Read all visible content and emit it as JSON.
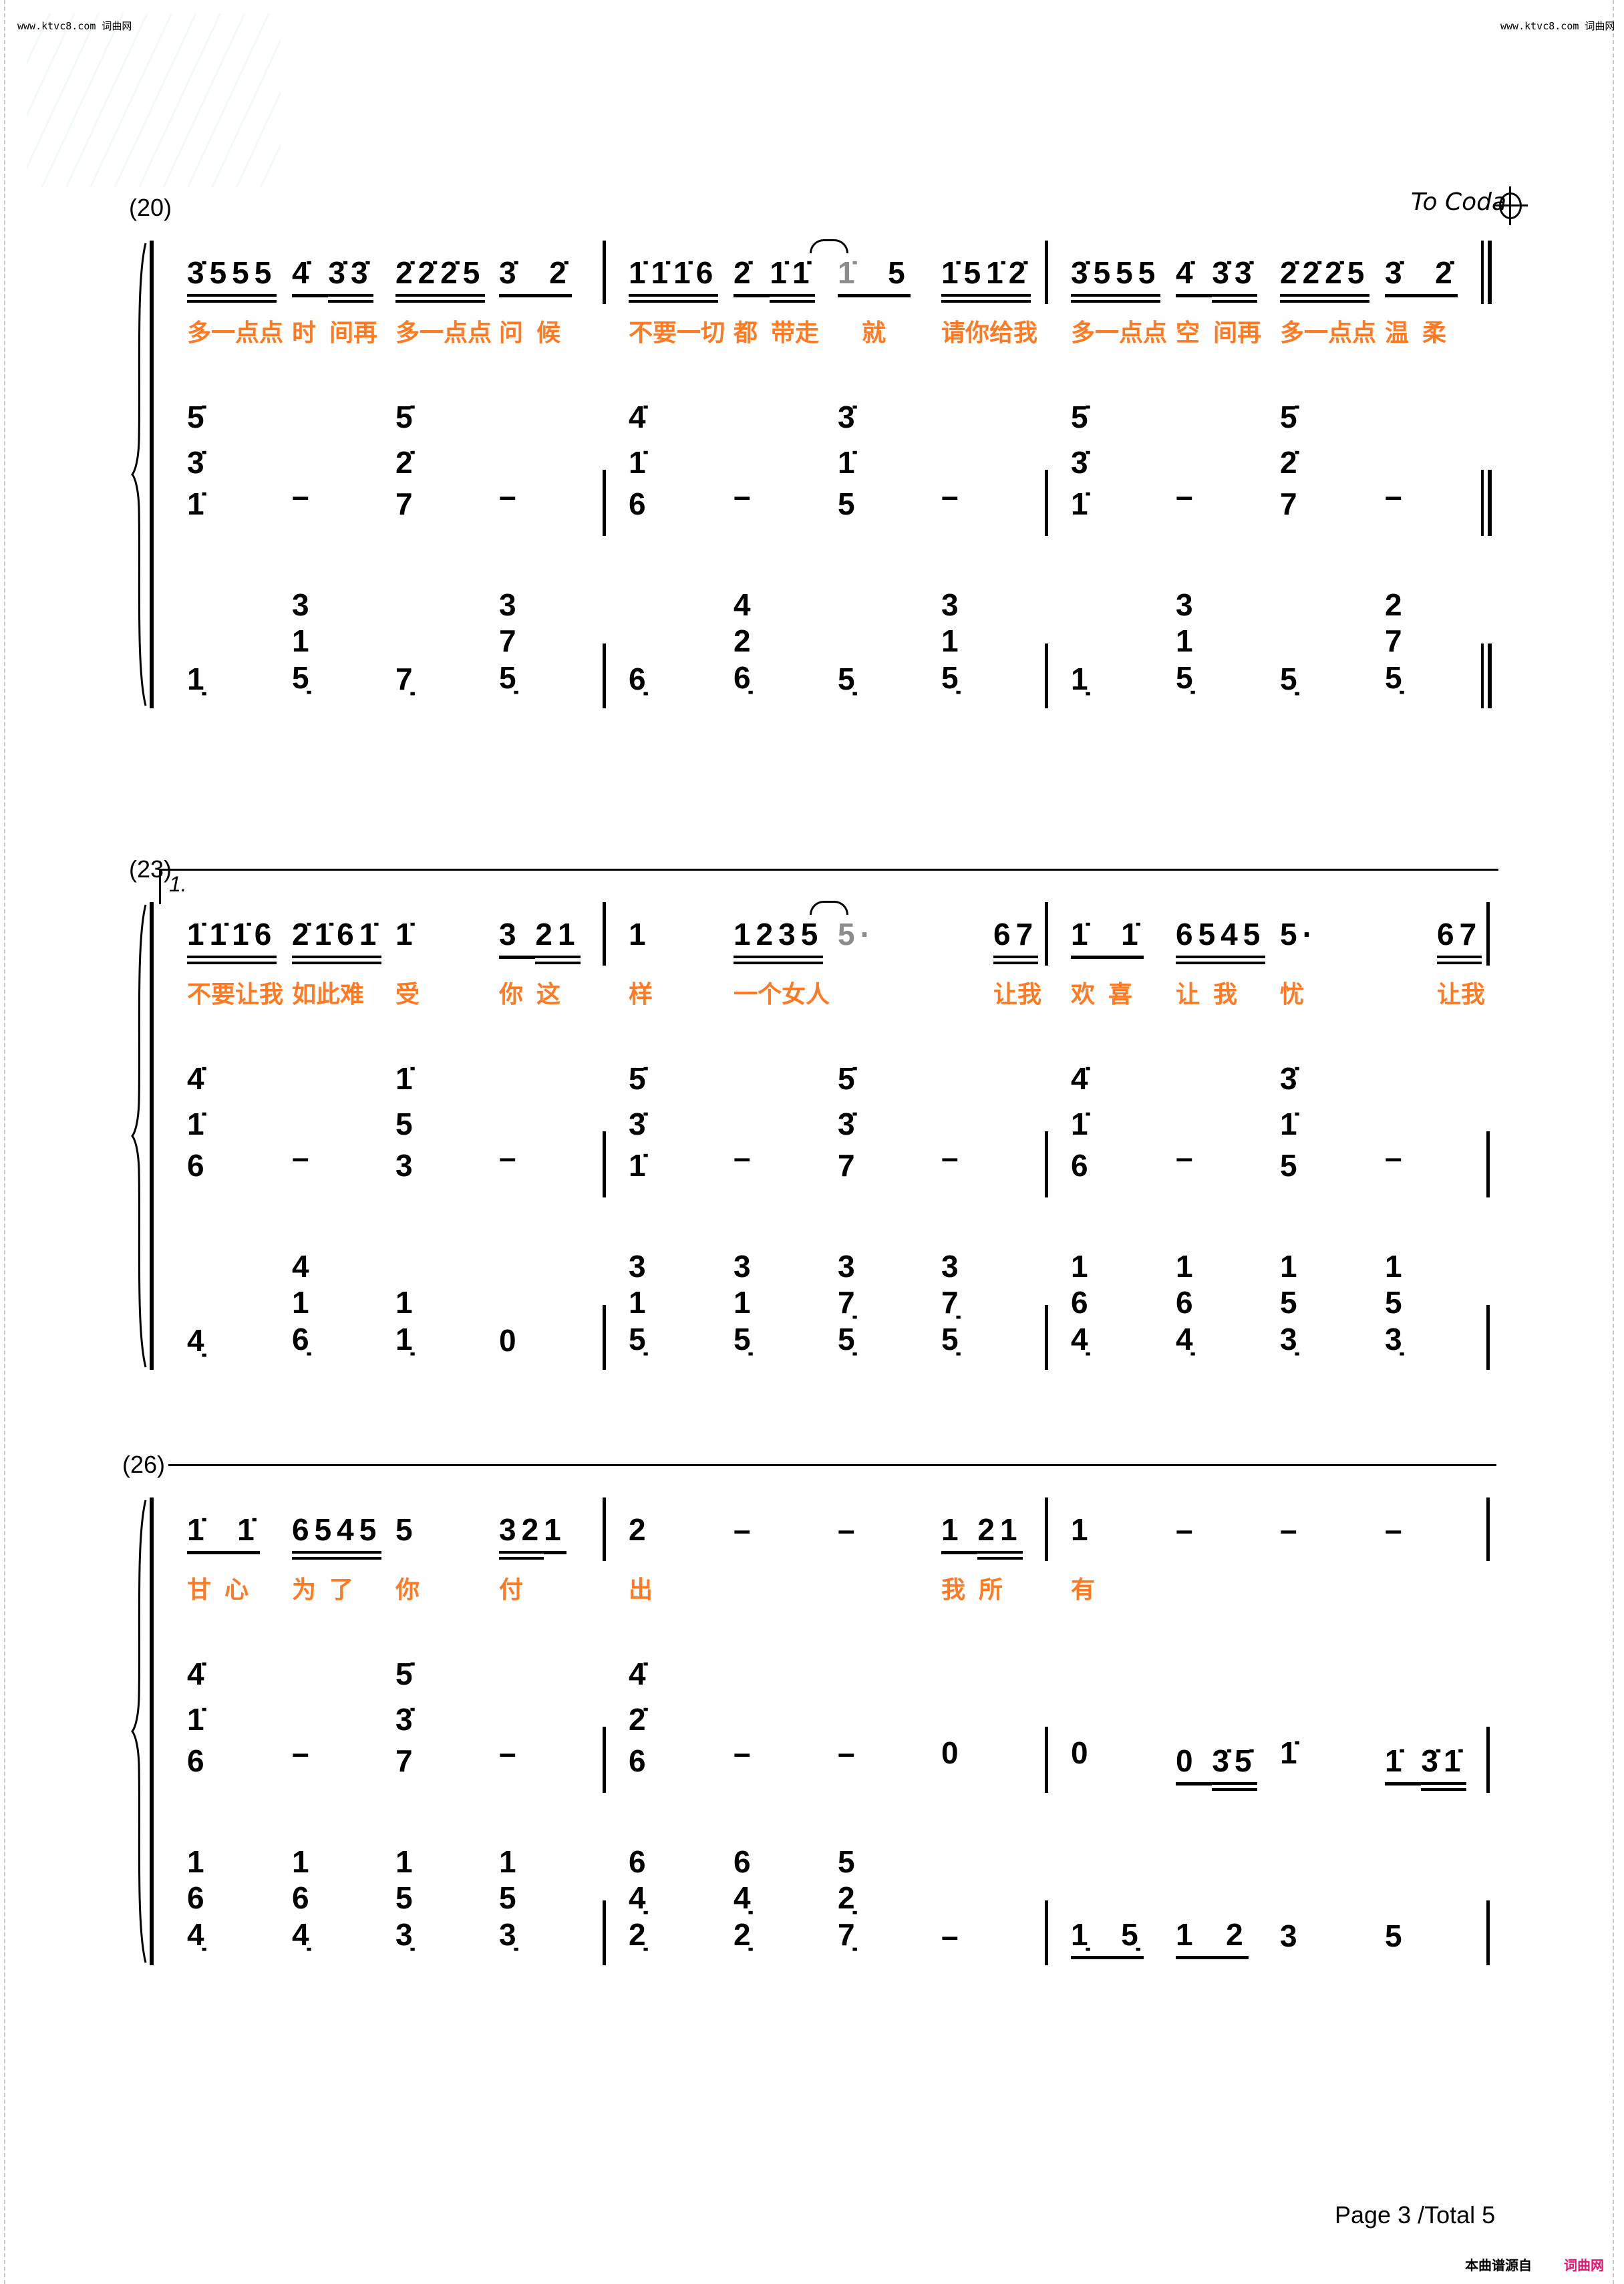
{
  "header": {
    "left": "www.ktvc8.com 词曲网",
    "right": "www.ktvc8.com 词曲网"
  },
  "coda_label": "To Coda",
  "footer": {
    "page": "Page 3 /Total 5",
    "source": "本曲谱源自",
    "site": "词曲网"
  },
  "colors": {
    "lyrics": "#ff7a22",
    "tied_note": "#8c8c8c",
    "site": "#e6106e",
    "notes": "#000000"
  },
  "systems": [
    {
      "label": "(20)",
      "end": "double",
      "measures": [
        {
          "melody": [
            {
              "g": [
                {
                  "n": "3̇555",
                  "u": 2
                }
              ]
            },
            {
              "g": [
                {
                  "n": "4̇ ",
                  "u": 1
                },
                {
                  "n": "3̇3̇",
                  "u": 2
                }
              ]
            },
            {
              "g": [
                {
                  "n": "2̇2̇2̇5",
                  "u": 2
                }
              ]
            },
            {
              "g": [
                {
                  "n": "3̇  2̇",
                  "u": 1
                }
              ]
            }
          ],
          "lyrics": [
            "多一点点",
            "时  间再",
            "多一点点",
            "问  候"
          ],
          "rh": [
            [
              "5̇",
              "3̇",
              "1̇"
            ],
            "–",
            [
              "5̇",
              "2̇",
              "7"
            ],
            "–"
          ],
          "lh": [
            "1̣",
            [
              "3",
              "1",
              "5̣"
            ],
            "7̣̣",
            [
              "3",
              "7",
              "5̣"
            ]
          ]
        },
        {
          "melody": [
            {
              "g": [
                {
                  "n": "1̇1̇1̇6",
                  "u": 2
                }
              ]
            },
            {
              "g": [
                {
                  "n": "2̇ ",
                  "u": 1
                },
                {
                  "n": "1̇1̇",
                  "u": 2
                }
              ]
            },
            {
              "g": [
                {
                  "n": "1̇",
                  "u": 1,
                  "gray": true,
                  "tie": true
                },
                {
                  "n": "  5",
                  "u": 1
                }
              ]
            },
            {
              "g": [
                {
                  "n": "1̇51̇2̇",
                  "u": 2
                }
              ]
            }
          ],
          "lyrics": [
            "不要一切",
            "都  带走",
            "　就",
            "请你给我"
          ],
          "rh": [
            [
              "4̇",
              "1̇",
              "6"
            ],
            "–",
            [
              "3̇",
              "1̇",
              "5"
            ],
            "–"
          ],
          "lh": [
            "6̣̣",
            [
              "4",
              "2",
              "6̣"
            ],
            "5̣̣",
            [
              "3",
              "1",
              "5̣"
            ]
          ]
        },
        {
          "melody": [
            {
              "g": [
                {
                  "n": "3̇555",
                  "u": 2
                }
              ]
            },
            {
              "g": [
                {
                  "n": "4̇ ",
                  "u": 1
                },
                {
                  "n": "3̇3̇",
                  "u": 2
                }
              ]
            },
            {
              "g": [
                {
                  "n": "2̇2̇2̇5",
                  "u": 2
                }
              ]
            },
            {
              "g": [
                {
                  "n": "3̇  2̇",
                  "u": 1
                }
              ]
            }
          ],
          "lyrics": [
            "多一点点",
            "空  间再",
            "多一点点",
            "温  柔"
          ],
          "rh": [
            [
              "5̇",
              "3̇",
              "1̇"
            ],
            "–",
            [
              "5̇",
              "2̇",
              "7"
            ],
            "–"
          ],
          "lh": [
            "1̣",
            [
              "3",
              "1",
              "5̣"
            ],
            "5̣̣",
            [
              "2",
              "7",
              "5̣"
            ]
          ]
        }
      ]
    },
    {
      "label": "(23)",
      "volta": "1.",
      "end": "single",
      "measures": [
        {
          "melody": [
            {
              "g": [
                {
                  "n": "1̇1̇1̇6",
                  "u": 2
                }
              ]
            },
            {
              "g": [
                {
                  "n": "2̇1̇61̇",
                  "u": 2
                }
              ]
            },
            "1̇",
            {
              "g": [
                {
                  "n": "3 ",
                  "u": 1
                },
                {
                  "n": "21",
                  "u": 2
                }
              ]
            }
          ],
          "lyrics": [
            "不要让我",
            "如此难",
            "受",
            "你  这"
          ],
          "rh": [
            [
              "4̇",
              "1̇",
              "6"
            ],
            "–",
            [
              "1̇",
              "5",
              "3"
            ],
            "–"
          ],
          "lh": [
            "4̣̣",
            [
              "4",
              "1",
              "6̣"
            ],
            [
              "1",
              "1̣"
            ],
            "0"
          ]
        },
        {
          "melody": [
            "1",
            {
              "g": [
                {
                  "n": "1235",
                  "u": 2
                }
              ]
            },
            {
              "g": [
                {
                  "n": "5·",
                  "u": 0,
                  "gray": true,
                  "tie": true
                }
              ]
            },
            {
              "b": 4.5,
              "g": [
                {
                  "n": "67",
                  "u": 2
                }
              ]
            }
          ],
          "lyrics": [
            "样",
            "一个女人",
            "",
            "让我"
          ],
          "rh": [
            [
              "5̇",
              "3̇",
              "1̇"
            ],
            "–",
            [
              "5̇",
              "3̇",
              "7"
            ],
            "–"
          ],
          "lh": [
            [
              "3",
              "1",
              "5̣"
            ],
            [
              "3",
              "1",
              "5̣"
            ],
            [
              "3",
              "7̣",
              "5̣"
            ],
            [
              "3",
              "7̣",
              "5̣"
            ]
          ]
        },
        {
          "melody": [
            {
              "g": [
                {
                  "n": "1̇  1̇",
                  "u": 1
                }
              ]
            },
            {
              "g": [
                {
                  "n": "6545",
                  "u": 2
                }
              ]
            },
            "5·",
            {
              "b": 4.5,
              "g": [
                {
                  "n": "67",
                  "u": 2
                }
              ]
            }
          ],
          "lyrics": [
            "欢  喜",
            "让  我",
            "忧",
            "让我"
          ],
          "rh": [
            [
              "4̇",
              "1̇",
              "6"
            ],
            "–",
            [
              "3̇",
              "1̇",
              "5"
            ],
            "–"
          ],
          "lh": [
            [
              "1",
              "6",
              "4̣"
            ],
            [
              "1",
              "6",
              "4̣"
            ],
            [
              "1",
              "5",
              "3̣"
            ],
            [
              "1",
              "5",
              "3̣"
            ]
          ]
        }
      ]
    },
    {
      "label": "(26)",
      "rule": true,
      "end": "single",
      "measures": [
        {
          "melody": [
            {
              "g": [
                {
                  "n": "1̇  1̇",
                  "u": 1
                }
              ]
            },
            {
              "g": [
                {
                  "n": "6545",
                  "u": 2
                }
              ]
            },
            "5",
            {
              "g": [
                {
                  "n": "32",
                  "u": 2
                },
                {
                  "n": "1",
                  "u": 1
                }
              ]
            }
          ],
          "lyrics": [
            "甘  心",
            "为  了",
            "你",
            "付"
          ],
          "rh": [
            [
              "4̇",
              "1̇",
              "6"
            ],
            "–",
            [
              "5̇",
              "3̇",
              "7"
            ],
            "–"
          ],
          "lh": [
            [
              "1",
              "6",
              "4̣"
            ],
            [
              "1",
              "6",
              "4̣"
            ],
            [
              "1",
              "5",
              "3̣"
            ],
            [
              "1",
              "5",
              "3̣"
            ]
          ]
        },
        {
          "melody": [
            "2",
            "–",
            "–",
            {
              "g": [
                {
                  "n": "1 ",
                  "u": 1
                },
                {
                  "n": "21",
                  "u": 2
                }
              ]
            }
          ],
          "lyrics": [
            "出",
            "",
            "",
            "我  所"
          ],
          "rh": [
            [
              "4̇",
              "2̇",
              "6"
            ],
            "–",
            "–",
            "0"
          ],
          "lh": [
            [
              "6",
              "4̣",
              "2̣"
            ],
            [
              "6",
              "4̣",
              "2̣"
            ],
            [
              "5",
              "2̣",
              "7̣̣"
            ],
            "–"
          ]
        },
        {
          "melody": [
            "1",
            "–",
            "–",
            "–"
          ],
          "lyrics": [
            "有"
          ],
          "rh": [
            "0",
            {
              "g": [
                {
                  "n": "0 ",
                  "u": 1
                },
                {
                  "n": "3̇5̇",
                  "u": 2
                }
              ]
            },
            "1̇̇",
            {
              "g": [
                {
                  "n": "1̇̇ ",
                  "u": 1
                },
                {
                  "n": "3̇̇1̇̇",
                  "u": 2
                }
              ]
            }
          ],
          "lh": [
            {
              "g": [
                {
                  "n": "1̣  5̣",
                  "u": 1
                }
              ]
            },
            {
              "g": [
                {
                  "n": "1  2",
                  "u": 1
                }
              ]
            },
            "3",
            "5"
          ]
        }
      ]
    }
  ]
}
